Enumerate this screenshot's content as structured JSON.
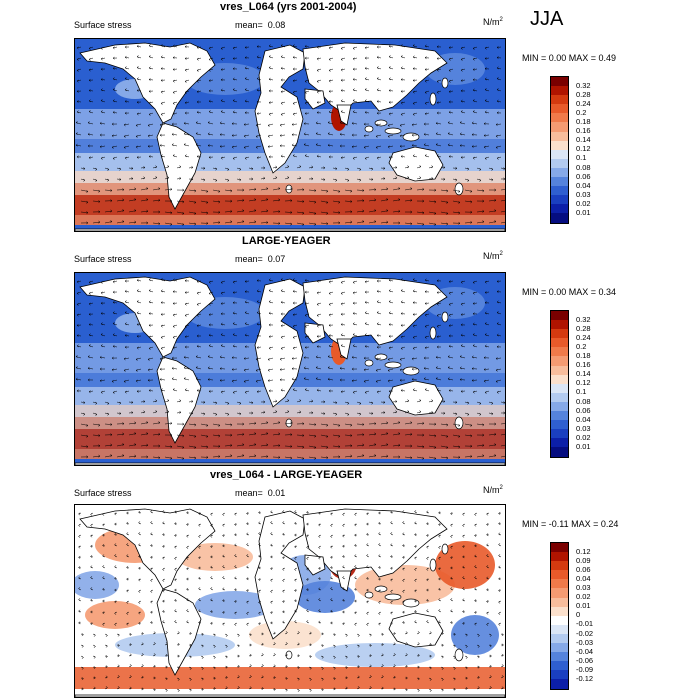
{
  "season": "JJA",
  "panels": [
    {
      "title": "vres_L064 (yrs 2001-2004)",
      "left_label": "Surface stress",
      "mean_label": "mean=",
      "mean_value": "0.08",
      "unit": "N/m",
      "unit_sup": "2",
      "stats": "MIN =   0.00 MAX =   0.49",
      "colorbar_labels": [
        "0.32",
        "0.28",
        "0.24",
        "0.2",
        "0.18",
        "0.16",
        "0.14",
        "0.12",
        "0.1",
        "0.08",
        "0.06",
        "0.04",
        "0.03",
        "0.02",
        "0.01"
      ]
    },
    {
      "title": "LARGE-YEAGER",
      "left_label": "Surface stress",
      "mean_label": "mean=",
      "mean_value": "0.07",
      "unit": "N/m",
      "unit_sup": "2",
      "stats": "MIN =   0.00 MAX =   0.34",
      "colorbar_labels": [
        "0.32",
        "0.28",
        "0.24",
        "0.2",
        "0.18",
        "0.16",
        "0.14",
        "0.12",
        "0.1",
        "0.08",
        "0.06",
        "0.04",
        "0.03",
        "0.02",
        "0.01"
      ]
    },
    {
      "title": "vres_L064 - LARGE-YEAGER",
      "left_label": "Surface stress",
      "mean_label": "mean=",
      "mean_value": "0.01",
      "unit": "N/m",
      "unit_sup": "2",
      "stats": "MIN = -0.11 MAX =   0.24",
      "colorbar_labels": [
        "0.12",
        "0.09",
        "0.06",
        "0.04",
        "0.03",
        "0.02",
        "0.01",
        "0",
        "-0.01",
        "-0.02",
        "-0.03",
        "-0.04",
        "-0.06",
        "-0.09",
        "-0.12"
      ]
    }
  ],
  "colors": {
    "abs_scale": [
      "#7a0000",
      "#b01400",
      "#d43a10",
      "#e85a2a",
      "#f07a4a",
      "#f59b72",
      "#f8bd9c",
      "#fbe0cc",
      "#dbe6f6",
      "#b3cbf0",
      "#86a9e8",
      "#5583dc",
      "#2f5fd0",
      "#1a3fc0",
      "#0c1fa8",
      "#050d80"
    ],
    "diff_scale": [
      "#7a0000",
      "#b01400",
      "#d43a10",
      "#e85a2a",
      "#f07a4a",
      "#f59b72",
      "#f8bd9c",
      "#fbe0cc",
      "#ffffff",
      "#dbe6f6",
      "#b3cbf0",
      "#86a9e8",
      "#5583dc",
      "#2f5fd0",
      "#1a3fc0",
      "#0c1fa8"
    ],
    "land": "#ffffff",
    "coastline": "#000000"
  }
}
